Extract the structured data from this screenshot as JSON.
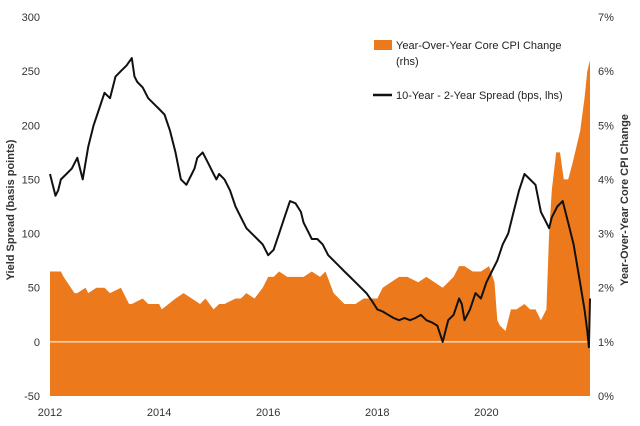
{
  "chart_data": {
    "type": "area",
    "ylabel_left": "Yield Spread (basis points)",
    "ylabel_right": "Year-Over-Year Core CPI Change",
    "x_ticks": [
      "2012",
      "2014",
      "2016",
      "2018",
      "2020"
    ],
    "xlim": [
      2012,
      2021.9
    ],
    "y_left": {
      "ticks": [
        "-50",
        "0",
        "50",
        "100",
        "150",
        "200",
        "250",
        "300"
      ],
      "lim": [
        -50,
        300
      ]
    },
    "y_right": {
      "ticks": [
        "0%",
        "1%",
        "2%",
        "3%",
        "4%",
        "5%",
        "6%",
        "7%"
      ],
      "lim": [
        0,
        7
      ]
    },
    "grid": false,
    "legend_position": "top-right",
    "colors": {
      "cpi": "#ec7a1c",
      "spread": "#111111"
    },
    "series": [
      {
        "name": "Year-Over-Year Core CPI Change",
        "name_suffix": "(rhs)",
        "axis": "right",
        "style": "area",
        "x": [
          2012.0,
          2012.2,
          2012.25,
          2012.45,
          2012.5,
          2012.65,
          2012.7,
          2012.85,
          2013.0,
          2013.1,
          2013.3,
          2013.45,
          2013.5,
          2013.7,
          2013.8,
          2014.0,
          2014.05,
          2014.3,
          2014.45,
          2014.6,
          2014.75,
          2014.85,
          2015.0,
          2015.1,
          2015.2,
          2015.4,
          2015.5,
          2015.6,
          2015.75,
          2015.9,
          2016.0,
          2016.1,
          2016.2,
          2016.35,
          2016.5,
          2016.65,
          2016.8,
          2016.95,
          2017.05,
          2017.2,
          2017.4,
          2017.6,
          2017.75,
          2017.85,
          2018.0,
          2018.1,
          2018.25,
          2018.4,
          2018.55,
          2018.75,
          2018.9,
          2019.05,
          2019.2,
          2019.4,
          2019.5,
          2019.6,
          2019.75,
          2019.9,
          2020.05,
          2020.15,
          2020.2,
          2020.25,
          2020.35,
          2020.45,
          2020.55,
          2020.7,
          2020.8,
          2020.9,
          2021.0,
          2021.1,
          2021.15,
          2021.2,
          2021.28,
          2021.35,
          2021.42,
          2021.5,
          2021.58,
          2021.65,
          2021.72,
          2021.8,
          2021.85,
          2021.9
        ],
        "values": [
          2.3,
          2.3,
          2.2,
          1.9,
          1.9,
          2.0,
          1.9,
          2.0,
          2.0,
          1.9,
          2.0,
          1.7,
          1.7,
          1.8,
          1.7,
          1.7,
          1.6,
          1.8,
          1.9,
          1.8,
          1.7,
          1.8,
          1.6,
          1.7,
          1.7,
          1.8,
          1.8,
          1.9,
          1.8,
          2.0,
          2.2,
          2.2,
          2.3,
          2.2,
          2.2,
          2.2,
          2.3,
          2.2,
          2.3,
          1.9,
          1.7,
          1.7,
          1.8,
          1.8,
          1.8,
          2.0,
          2.1,
          2.2,
          2.2,
          2.1,
          2.2,
          2.1,
          2.0,
          2.2,
          2.4,
          2.4,
          2.3,
          2.3,
          2.4,
          2.1,
          1.4,
          1.3,
          1.2,
          1.6,
          1.6,
          1.7,
          1.6,
          1.6,
          1.4,
          1.6,
          3.0,
          3.8,
          4.5,
          4.5,
          4.0,
          4.0,
          4.3,
          4.6,
          4.9,
          5.5,
          6.0,
          6.2
        ]
      },
      {
        "name": "10-Year - 2-Year Spread (bps, lhs)",
        "axis": "left",
        "style": "line",
        "x": [
          2012.0,
          2012.05,
          2012.1,
          2012.15,
          2012.2,
          2012.3,
          2012.4,
          2012.5,
          2012.6,
          2012.7,
          2012.8,
          2012.9,
          2013.0,
          2013.1,
          2013.2,
          2013.3,
          2013.4,
          2013.5,
          2013.55,
          2013.6,
          2013.7,
          2013.8,
          2013.9,
          2014.0,
          2014.1,
          2014.2,
          2014.3,
          2014.4,
          2014.5,
          2014.6,
          2014.65,
          2014.7,
          2014.8,
          2014.9,
          2015.0,
          2015.05,
          2015.1,
          2015.2,
          2015.3,
          2015.4,
          2015.5,
          2015.6,
          2015.7,
          2015.8,
          2015.9,
          2016.0,
          2016.1,
          2016.2,
          2016.3,
          2016.4,
          2016.5,
          2016.6,
          2016.65,
          2016.7,
          2016.75,
          2016.8,
          2016.9,
          2017.0,
          2017.1,
          2017.2,
          2017.3,
          2017.4,
          2017.5,
          2017.6,
          2017.7,
          2017.8,
          2017.9,
          2018.0,
          2018.1,
          2018.2,
          2018.3,
          2018.4,
          2018.5,
          2018.6,
          2018.7,
          2018.8,
          2018.9,
          2019.0,
          2019.1,
          2019.2,
          2019.3,
          2019.4,
          2019.5,
          2019.55,
          2019.6,
          2019.7,
          2019.8,
          2019.9,
          2020.0,
          2020.1,
          2020.2,
          2020.3,
          2020.4,
          2020.5,
          2020.6,
          2020.7,
          2020.8,
          2020.9,
          2021.0,
          2021.1,
          2021.15,
          2021.2,
          2021.3,
          2021.4,
          2021.5,
          2021.55,
          2021.6,
          2021.7,
          2021.8,
          2021.85,
          2021.88,
          2021.9
        ],
        "values": [
          155,
          145,
          135,
          140,
          150,
          155,
          160,
          170,
          150,
          180,
          200,
          215,
          230,
          225,
          245,
          250,
          255,
          262,
          245,
          240,
          235,
          225,
          220,
          215,
          210,
          195,
          175,
          150,
          145,
          155,
          160,
          170,
          175,
          165,
          155,
          150,
          155,
          150,
          140,
          125,
          115,
          105,
          100,
          95,
          90,
          80,
          85,
          100,
          115,
          130,
          128,
          120,
          110,
          105,
          100,
          95,
          95,
          90,
          80,
          75,
          70,
          65,
          60,
          55,
          50,
          45,
          38,
          30,
          28,
          25,
          22,
          20,
          22,
          20,
          22,
          25,
          20,
          18,
          15,
          0,
          20,
          25,
          40,
          35,
          20,
          30,
          45,
          40,
          55,
          65,
          75,
          90,
          100,
          120,
          140,
          155,
          150,
          145,
          120,
          110,
          105,
          115,
          125,
          130,
          110,
          100,
          90,
          60,
          30,
          10,
          -5,
          40
        ]
      }
    ]
  }
}
